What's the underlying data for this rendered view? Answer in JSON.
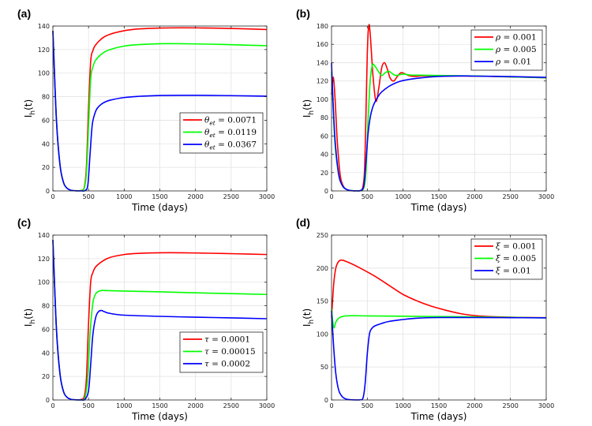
{
  "chart_data": [
    {
      "type": "line",
      "panel": "(a)",
      "xlabel": "Time (days)",
      "ylabel": "I",
      "ylabel_sub": "h",
      "ylabel_tail": "(t)",
      "xlim": [
        0,
        3000
      ],
      "ylim": [
        0,
        140
      ],
      "xticks": [
        0,
        500,
        1000,
        1500,
        2000,
        2500,
        3000
      ],
      "yticks": [
        0,
        20,
        40,
        60,
        80,
        100,
        120,
        140
      ],
      "grid": true,
      "legend_position": "center-right",
      "series": [
        {
          "name": "θ_et = 0.0071",
          "sym": "θ",
          "sub": "et",
          "eq": " = 0.0071",
          "color": "#ff0000",
          "x": [
            0,
            50,
            100,
            150,
            200,
            250,
            300,
            350,
            400,
            440,
            470,
            500,
            530,
            560,
            600,
            700,
            800,
            1000,
            1200,
            1500,
            1800,
            2200,
            2600,
            3000
          ],
          "y": [
            136,
            60,
            22,
            7,
            2.2,
            0.6,
            0.2,
            0.1,
            0.5,
            3,
            20,
            70,
            110,
            119,
            124,
            130,
            133,
            136,
            137.5,
            138.3,
            138.5,
            138.3,
            137.8,
            137
          ]
        },
        {
          "name": "θ_et = 0.0119",
          "sym": "θ",
          "sub": "et",
          "eq": " = 0.0119",
          "color": "#00ff00",
          "x": [
            0,
            50,
            100,
            150,
            200,
            250,
            300,
            350,
            400,
            440,
            470,
            500,
            530,
            560,
            600,
            700,
            800,
            1000,
            1200,
            1500,
            1800,
            2200,
            2600,
            3000
          ],
          "y": [
            136,
            60,
            22,
            7,
            2.2,
            0.6,
            0.2,
            0.1,
            0.4,
            2.5,
            15,
            55,
            95,
            105,
            111,
            117,
            120,
            123,
            124.2,
            125,
            125,
            124.6,
            124,
            123.3
          ]
        },
        {
          "name": "θ_et = 0.0367",
          "sym": "θ",
          "sub": "et",
          "eq": " = 0.0367",
          "color": "#0000ff",
          "x": [
            0,
            50,
            100,
            150,
            200,
            250,
            300,
            350,
            400,
            450,
            490,
            520,
            550,
            580,
            620,
            700,
            800,
            1000,
            1200,
            1500,
            1800,
            2200,
            2600,
            3000
          ],
          "y": [
            136,
            60,
            22,
            7,
            2.2,
            0.6,
            0.2,
            0.05,
            0.05,
            0.3,
            5,
            30,
            55,
            64,
            70,
            74.5,
            77,
            79.3,
            80.3,
            81,
            81.2,
            81.1,
            80.8,
            80.4
          ]
        }
      ]
    },
    {
      "type": "line",
      "panel": "(b)",
      "xlabel": "Time (days)",
      "ylabel": "I",
      "ylabel_sub": "h",
      "ylabel_tail": "(t)",
      "xlim": [
        0,
        3000
      ],
      "ylim": [
        0,
        180
      ],
      "xticks": [
        0,
        500,
        1000,
        1500,
        2000,
        2500,
        3000
      ],
      "yticks": [
        0,
        20,
        40,
        60,
        80,
        100,
        120,
        140,
        160,
        180
      ],
      "grid": true,
      "legend_position": "top-right",
      "series": [
        {
          "name": "ρ = 0.001",
          "sym": "ρ",
          "sub": "",
          "eq": " = 0.001",
          "color": "#ff0000",
          "x": [
            0,
            25,
            50,
            80,
            120,
            160,
            200,
            250,
            300,
            350,
            400,
            430,
            460,
            480,
            500,
            520,
            540,
            580,
            620,
            660,
            700,
            740,
            780,
            820,
            870,
            920,
            970,
            1020,
            1080,
            1150,
            1300,
            1500,
            2000,
            2500,
            3000
          ],
          "y": [
            105,
            124,
            100,
            55,
            18,
            6,
            2,
            0.5,
            0.15,
            0.1,
            0.3,
            2,
            20,
            80,
            150,
            180,
            172,
            125,
            98,
            112,
            134,
            140,
            133,
            123,
            120,
            125,
            129,
            128,
            126,
            125,
            125.7,
            125.5,
            125.3,
            124.5,
            123.5
          ]
        },
        {
          "name": "ρ = 0.005",
          "sym": "ρ",
          "sub": "",
          "eq": " = 0.005",
          "color": "#00ff00",
          "x": [
            0,
            20,
            50,
            100,
            150,
            200,
            250,
            300,
            350,
            400,
            450,
            480,
            510,
            540,
            570,
            600,
            650,
            700,
            750,
            800,
            850,
            900,
            1000,
            1100,
            1200,
            1500,
            2000,
            2500,
            3000
          ],
          "y": [
            130,
            95,
            50,
            18,
            6,
            2,
            0.6,
            0.2,
            0.1,
            0.3,
            3,
            20,
            75,
            120,
            137,
            137,
            131,
            126,
            129,
            130.5,
            128,
            126,
            127.5,
            126.5,
            126.3,
            126,
            125.5,
            124.5,
            123.5
          ]
        },
        {
          "name": "ρ = 0.01",
          "sym": "ρ",
          "sub": "",
          "eq": " = 0.01",
          "color": "#0000ff",
          "x": [
            0,
            20,
            50,
            100,
            150,
            200,
            250,
            300,
            350,
            400,
            450,
            480,
            510,
            540,
            570,
            600,
            650,
            700,
            800,
            900,
            1000,
            1200,
            1500,
            1800,
            2000,
            2500,
            3000
          ],
          "y": [
            140,
            100,
            55,
            18,
            6,
            2,
            0.6,
            0.2,
            0.1,
            0.4,
            5,
            30,
            62,
            80,
            90,
            96,
            103,
            108,
            114,
            118,
            120.5,
            123,
            125,
            125.5,
            125.3,
            124.8,
            124
          ]
        }
      ]
    },
    {
      "type": "line",
      "panel": "(c)",
      "xlabel": "Time (days)",
      "ylabel": "I",
      "ylabel_sub": "h",
      "ylabel_tail": "(t)",
      "xlim": [
        0,
        3000
      ],
      "ylim": [
        0,
        140
      ],
      "xticks": [
        0,
        500,
        1000,
        1500,
        2000,
        2500,
        3000
      ],
      "yticks": [
        0,
        20,
        40,
        60,
        80,
        100,
        120,
        140
      ],
      "grid": true,
      "legend_position": "center-right",
      "series": [
        {
          "name": "τ = 0.0001",
          "sym": "τ",
          "sub": "",
          "eq": " = 0.0001",
          "color": "#ff0000",
          "x": [
            0,
            50,
            100,
            150,
            200,
            250,
            300,
            350,
            400,
            440,
            470,
            500,
            530,
            560,
            600,
            700,
            800,
            1000,
            1200,
            1500,
            1800,
            2200,
            2600,
            3000
          ],
          "y": [
            136,
            60,
            22,
            7,
            2.2,
            0.6,
            0.2,
            0.1,
            0.5,
            3,
            18,
            65,
            100,
            108,
            113,
            118,
            121,
            123.5,
            124.5,
            125,
            125,
            124.6,
            124.1,
            123.5
          ]
        },
        {
          "name": "τ = 0.00015",
          "sym": "τ",
          "sub": "",
          "eq": " = 0.00015",
          "color": "#00ff00",
          "x": [
            0,
            50,
            100,
            150,
            200,
            250,
            300,
            350,
            400,
            450,
            490,
            520,
            560,
            600,
            650,
            700,
            800,
            1000,
            1500,
            2000,
            2500,
            3000
          ],
          "y": [
            136,
            60,
            22,
            7,
            2.2,
            0.6,
            0.2,
            0.08,
            0.2,
            2,
            20,
            55,
            82,
            90,
            92.5,
            93,
            92.8,
            92.5,
            91.8,
            91,
            90.3,
            89.6
          ]
        },
        {
          "name": "τ = 0.0002",
          "sym": "τ",
          "sub": "",
          "eq": " = 0.0002",
          "color": "#0000ff",
          "x": [
            0,
            50,
            100,
            150,
            200,
            250,
            300,
            350,
            400,
            450,
            500,
            530,
            560,
            600,
            640,
            680,
            720,
            800,
            1000,
            1500,
            2000,
            2500,
            3000
          ],
          "y": [
            136,
            60,
            22,
            7,
            2.2,
            0.6,
            0.2,
            0.05,
            0.05,
            0.5,
            8,
            30,
            55,
            70,
            75,
            76,
            75,
            73.5,
            72,
            71,
            70.3,
            69.7,
            69
          ]
        }
      ]
    },
    {
      "type": "line",
      "panel": "(d)",
      "xlabel": "Time (days)",
      "ylabel": "I",
      "ylabel_sub": "h",
      "ylabel_tail": "(t)",
      "xlim": [
        0,
        3000
      ],
      "ylim": [
        0,
        250
      ],
      "xticks": [
        0,
        500,
        1000,
        1500,
        2000,
        2500,
        3000
      ],
      "yticks": [
        0,
        50,
        100,
        150,
        200,
        250
      ],
      "grid": true,
      "legend_position": "top-right",
      "series": [
        {
          "name": "ξ = 0.001",
          "sym": "ξ",
          "sub": "",
          "eq": " = 0.001",
          "color": "#ff0000",
          "x": [
            0,
            30,
            60,
            100,
            150,
            250,
            400,
            600,
            800,
            1000,
            1200,
            1400,
            1600,
            1800,
            2000,
            2200,
            2500,
            2800,
            3000
          ],
          "y": [
            125,
            175,
            200,
            210,
            212,
            208,
            200,
            188,
            174,
            160,
            150,
            142,
            136,
            131,
            128,
            126.5,
            125.5,
            125,
            124.8
          ]
        },
        {
          "name": "ξ = 0.005",
          "sym": "ξ",
          "sub": "",
          "eq": " = 0.005",
          "color": "#00ff00",
          "x": [
            0,
            30,
            60,
            100,
            150,
            200,
            300,
            500,
            1000,
            1500,
            2000,
            2500,
            3000
          ],
          "y": [
            138,
            110,
            118,
            124,
            126.5,
            127.5,
            127.8,
            127.5,
            127,
            126.5,
            126,
            125.2,
            124.5
          ]
        },
        {
          "name": "ξ = 0.01",
          "sym": "ξ",
          "sub": "",
          "eq": " = 0.01",
          "color": "#0000ff",
          "x": [
            0,
            30,
            60,
            100,
            150,
            200,
            250,
            300,
            350,
            400,
            440,
            470,
            500,
            530,
            560,
            600,
            700,
            800,
            1000,
            1200,
            1500,
            2000,
            2500,
            3000
          ],
          "y": [
            135,
            80,
            40,
            15,
            5,
            1.5,
            0.5,
            0.2,
            0.1,
            0.3,
            3,
            25,
            70,
            100,
            108,
            112,
            116,
            119,
            122,
            124,
            125,
            125,
            124.8,
            124.5
          ]
        }
      ]
    }
  ]
}
